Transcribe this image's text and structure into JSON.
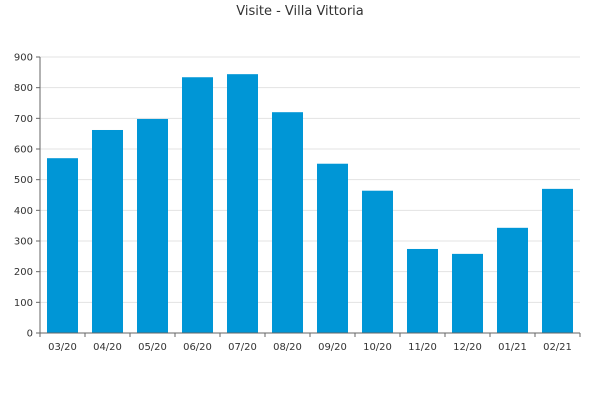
{
  "chart_data": {
    "type": "bar",
    "title": "Visite - Villa Vittoria",
    "xlabel": "",
    "ylabel": "",
    "categories": [
      "03/20",
      "04/20",
      "05/20",
      "06/20",
      "07/20",
      "08/20",
      "09/20",
      "10/20",
      "11/20",
      "12/20",
      "01/21",
      "02/21"
    ],
    "values": [
      570,
      662,
      698,
      834,
      844,
      720,
      552,
      464,
      274,
      258,
      343,
      470
    ],
    "ylim": [
      0,
      900
    ],
    "yticks": [
      0,
      100,
      200,
      300,
      400,
      500,
      600,
      700,
      800,
      900
    ],
    "grid": true,
    "legend": "none",
    "bar_color": "#0096d6"
  }
}
